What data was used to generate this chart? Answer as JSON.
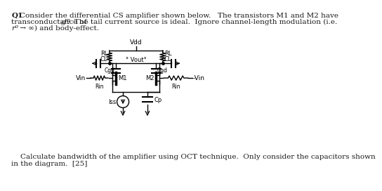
{
  "bg_color": "#ffffff",
  "text_color": "#1a1a1a",
  "line1": "Q1  Consider the differential CS amplifier shown below.   The transistors M1 and M2 have",
  "line2_plain": "transconductance of ",
  "line2_math": "g",
  "line2_sub": "m",
  "line2_end": ".  The tail current source is ideal.  Ignore channel-length modulation (i.e.",
  "line3_r": "r",
  "line3_sub": "o",
  "line3_end": " → ∞) and body-effect.",
  "footer1": "    Calculate bandwidth of the amplifier using OCT technique.  Only consider the capacitors shown",
  "footer2": "in the diagram.  [25]"
}
